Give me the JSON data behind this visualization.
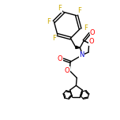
{
  "bg_color": "#ffffff",
  "bond_color": "#000000",
  "atom_colors": {
    "F": "#ccaa00",
    "O": "#ff0000",
    "N": "#0000cc",
    "C": "#000000"
  },
  "lw": 1.0,
  "fs": 6.0
}
